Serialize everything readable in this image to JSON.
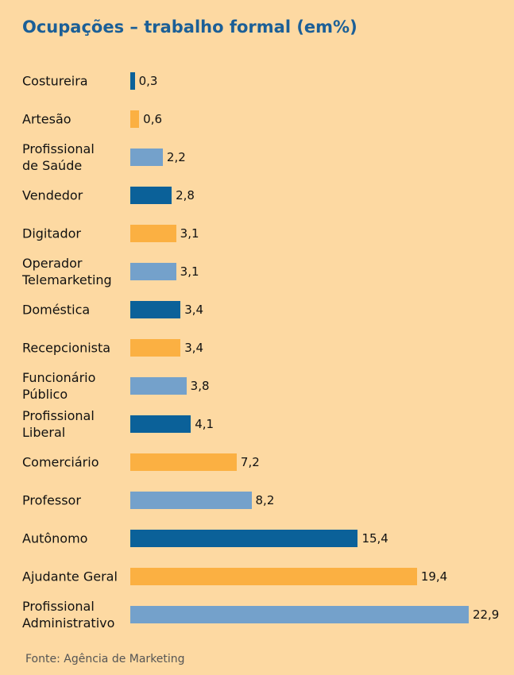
{
  "chart_data": {
    "type": "bar",
    "orientation": "horizontal",
    "title": "Ocupações – trabalho formal (em%)",
    "categories": [
      "Costureira",
      "Artesão",
      "Profissional\nde Saúde",
      "Vendedor",
      "Digitador",
      "Operador\nTelemarketing",
      "Doméstica",
      "Recepcionista",
      "Funcionário\nPúblico",
      "Profissional\nLiberal",
      "Comerciário",
      "Professor",
      "Autônomo",
      "Ajudante Geral",
      "Profissional\nAdministrativo"
    ],
    "values": [
      0.3,
      0.6,
      2.2,
      2.8,
      3.1,
      3.1,
      3.4,
      3.4,
      3.8,
      4.1,
      7.2,
      8.2,
      15.4,
      19.4,
      22.9
    ],
    "value_labels": [
      "0,3",
      "0,6",
      "2,2",
      "2,8",
      "3,1",
      "3,1",
      "3,4",
      "3,4",
      "3,8",
      "4,1",
      "7,2",
      "8,2",
      "15,4",
      "19,4",
      "22,9"
    ],
    "colors": [
      "#0b6199",
      "#fbb042",
      "#74a1cb",
      "#0b6199",
      "#fbb042",
      "#74a1cb",
      "#0b6199",
      "#fbb042",
      "#74a1cb",
      "#0b6199",
      "#fbb042",
      "#74a1cb",
      "#0b6199",
      "#fbb042",
      "#74a1cb"
    ],
    "source": "Fonte: Agência de Marketing"
  }
}
